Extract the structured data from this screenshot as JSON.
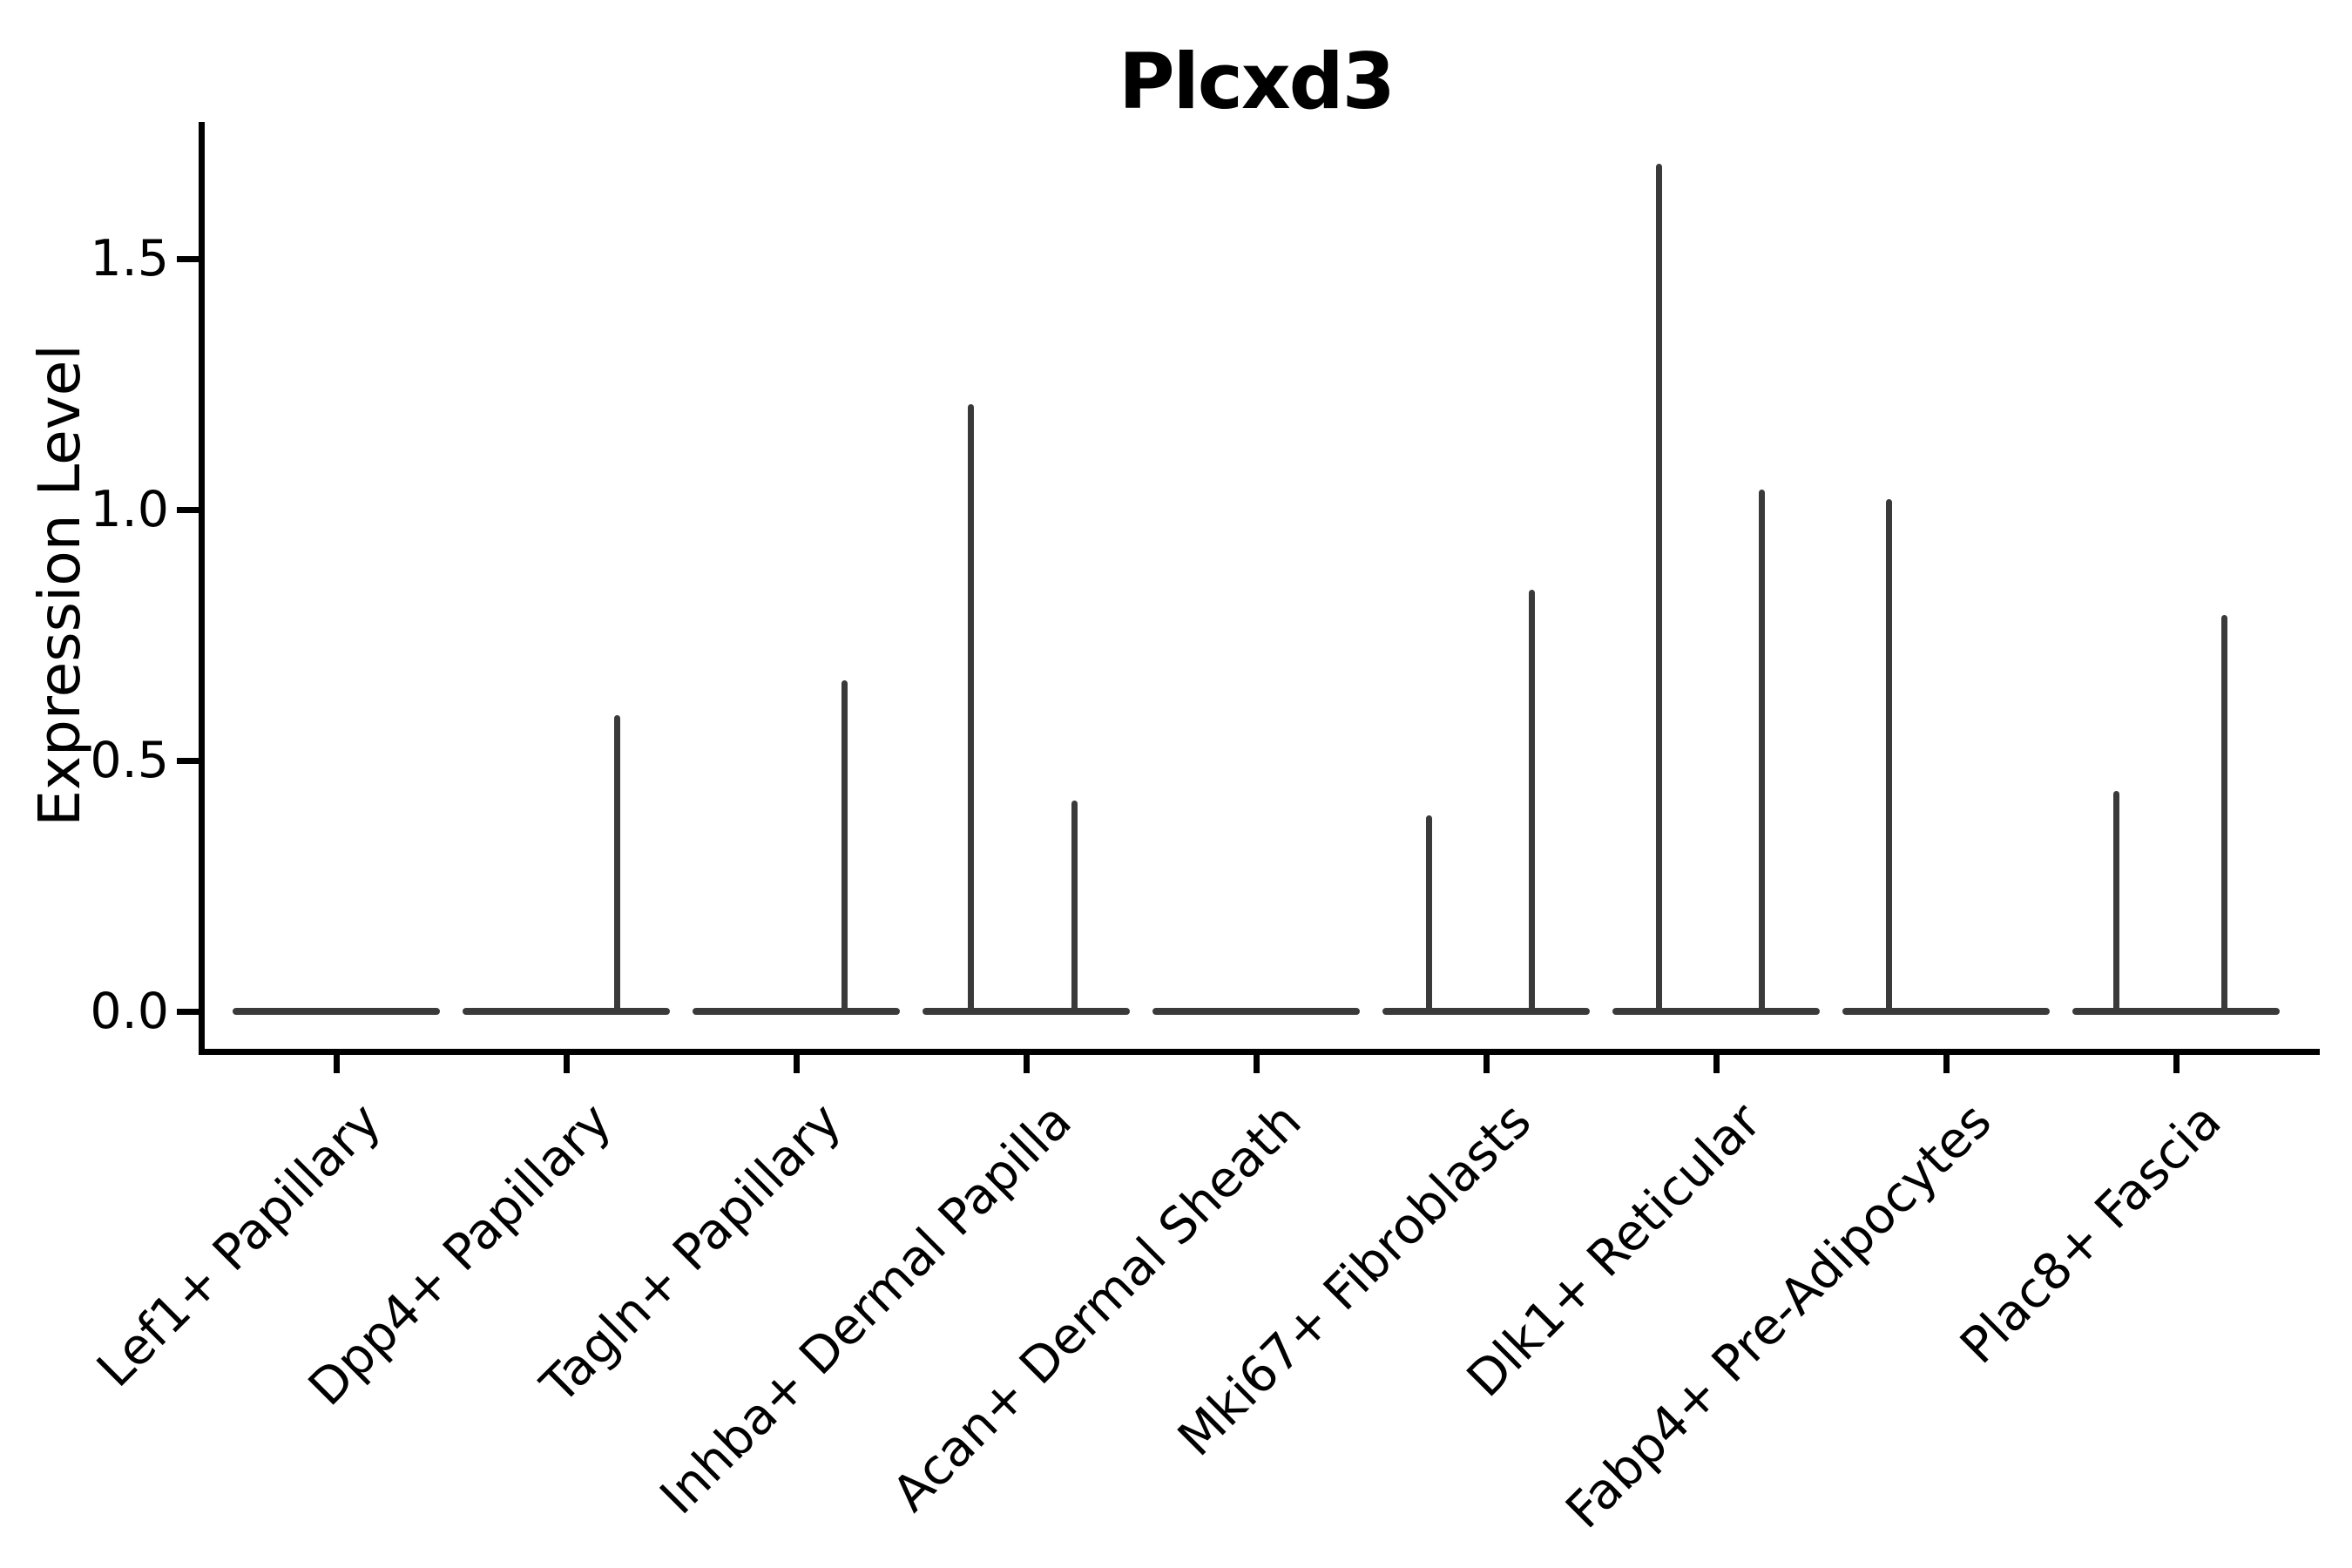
{
  "chart_data": {
    "type": "violin",
    "title": "Plcxd3",
    "ylabel": "Expression Level",
    "xlabel": "",
    "legend": null,
    "grid": false,
    "ylim": [
      -0.075,
      1.775
    ],
    "yticks": [
      {
        "value": 0.0,
        "label": "0.0"
      },
      {
        "value": 0.5,
        "label": "0.5"
      },
      {
        "value": 1.0,
        "label": "1.0"
      },
      {
        "value": 1.5,
        "label": "1.5"
      }
    ],
    "categories": [
      "Lef1+ Papillary",
      "Dpp4+ Papillary",
      "Tagln+ Papillary",
      "Inhba+ Dermal Papilla",
      "Acan+ Dermal Sheath",
      "Mki67+ Fibroblasts",
      "Dlk1+ Reticular",
      "Fabp4+ Pre-Adipocytes",
      "Plac8+ Fascia"
    ],
    "violins": [
      {
        "category": "Lef1+ Papillary",
        "baseline": 0.0,
        "spikes": []
      },
      {
        "category": "Dpp4+ Papillary",
        "baseline": 0.0,
        "spikes": [
          {
            "dx": 0.22,
            "value": 0.59
          }
        ]
      },
      {
        "category": "Tagln+ Papillary",
        "baseline": 0.0,
        "spikes": [
          {
            "dx": 0.21,
            "value": 0.66
          }
        ]
      },
      {
        "category": "Inhba+ Dermal Papilla",
        "baseline": 0.0,
        "spikes": [
          {
            "dx": -0.24,
            "value": 1.21
          },
          {
            "dx": 0.21,
            "value": 0.42
          }
        ]
      },
      {
        "category": "Acan+ Dermal Sheath",
        "baseline": 0.0,
        "spikes": []
      },
      {
        "category": "Mki67+ Fibroblasts",
        "baseline": 0.0,
        "spikes": [
          {
            "dx": -0.25,
            "value": 0.39
          },
          {
            "dx": 0.2,
            "value": 0.84
          }
        ]
      },
      {
        "category": "Dlk1+ Reticular",
        "baseline": 0.0,
        "spikes": [
          {
            "dx": -0.25,
            "value": 1.69
          },
          {
            "dx": 0.2,
            "value": 1.04
          }
        ]
      },
      {
        "category": "Fabp4+ Pre-Adipocytes",
        "baseline": 0.0,
        "spikes": [
          {
            "dx": -0.25,
            "value": 1.02
          }
        ]
      },
      {
        "category": "Plac8+ Fascia",
        "baseline": 0.0,
        "spikes": [
          {
            "dx": -0.26,
            "value": 0.44
          },
          {
            "dx": 0.21,
            "value": 0.79
          }
        ]
      }
    ],
    "violin_width_units": 0.9,
    "colors": {
      "violin_line": "#3a3a3a",
      "axis": "#000000",
      "text": "#000000",
      "background": "#ffffff"
    }
  }
}
